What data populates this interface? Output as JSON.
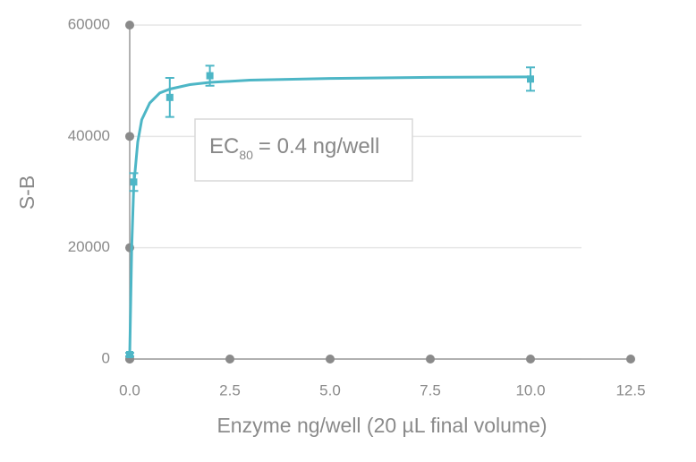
{
  "chart_data": {
    "type": "scatter",
    "xlabel": "Enzyme ng/well (20 µL final volume)",
    "ylabel": "S-B",
    "annotation": {
      "text": "EC",
      "subscript": "80",
      "rest": "= 0.4 ng/well"
    },
    "xlim": [
      0,
      12.5
    ],
    "xticks": [
      {
        "value": 0,
        "label": "0.0"
      },
      2.5,
      {
        "value": 5,
        "label": "5.0"
      },
      7.5,
      {
        "value": 10,
        "label": "10.0"
      },
      12.5
    ],
    "ylim": [
      0,
      60000
    ],
    "yticks": [
      0,
      20000,
      40000,
      60000
    ],
    "grid": true,
    "color": "#4db6c6",
    "series": [
      {
        "x": [
          0,
          0.1,
          1,
          2,
          10
        ],
        "values": [
          800,
          31800,
          47000,
          50900,
          50300
        ],
        "errors": [
          300,
          1600,
          3500,
          1800,
          2100
        ]
      }
    ],
    "curve": {
      "x": [
        0,
        0.05,
        0.1,
        0.2,
        0.3,
        0.5,
        0.75,
        1,
        1.5,
        2,
        3,
        5,
        7.5,
        10
      ],
      "values": [
        800,
        20000,
        31000,
        39000,
        43000,
        46000,
        47800,
        48500,
        49300,
        49700,
        50100,
        50400,
        50600,
        50700
      ]
    }
  }
}
